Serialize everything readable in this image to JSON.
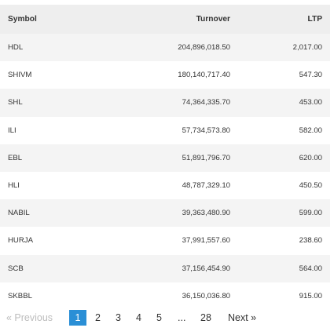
{
  "table": {
    "headers": {
      "symbol": "Symbol",
      "turnover": "Turnover",
      "ltp": "LTP"
    },
    "rows": [
      {
        "symbol": "HDL",
        "turnover": "204,896,018.50",
        "ltp": "2,017.00"
      },
      {
        "symbol": "SHIVM",
        "turnover": "180,140,717.40",
        "ltp": "547.30"
      },
      {
        "symbol": "SHL",
        "turnover": "74,364,335.70",
        "ltp": "453.00"
      },
      {
        "symbol": "ILI",
        "turnover": "57,734,573.80",
        "ltp": "582.00"
      },
      {
        "symbol": "EBL",
        "turnover": "51,891,796.70",
        "ltp": "620.00"
      },
      {
        "symbol": "HLI",
        "turnover": "48,787,329.10",
        "ltp": "450.50"
      },
      {
        "symbol": "NABIL",
        "turnover": "39,363,480.90",
        "ltp": "599.00"
      },
      {
        "symbol": "HURJA",
        "turnover": "37,991,557.60",
        "ltp": "238.60"
      },
      {
        "symbol": "SCB",
        "turnover": "37,156,454.90",
        "ltp": "564.00"
      },
      {
        "symbol": "SKBBL",
        "turnover": "36,150,036.80",
        "ltp": "915.00"
      }
    ]
  },
  "pagination": {
    "previous": "« Previous",
    "pages": [
      "1",
      "2",
      "3",
      "4",
      "5"
    ],
    "ellipsis": "...",
    "last": "28",
    "next": "Next »",
    "active_color": "#2a8fd6"
  }
}
